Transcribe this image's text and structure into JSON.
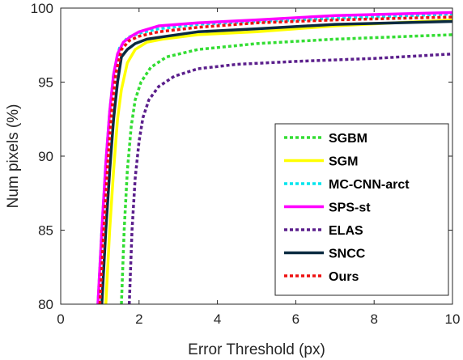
{
  "chart_data": {
    "type": "line",
    "title": "",
    "xlabel": "Error Threshold (px)",
    "ylabel": "Num pixels (%)",
    "xlim": [
      0,
      10
    ],
    "ylim": [
      80,
      100
    ],
    "xticks": [
      "0",
      "2",
      "4",
      "6",
      "8",
      "10"
    ],
    "yticks": [
      "80",
      "85",
      "90",
      "95",
      "100"
    ],
    "grid": false,
    "legend_position": "bottom-right",
    "series": [
      {
        "name": "SGBM",
        "color": "#33dd33",
        "style": "dotted",
        "x": [
          1.55,
          1.62,
          1.7,
          1.8,
          1.9,
          2.05,
          2.3,
          2.7,
          3.5,
          5,
          7,
          10
        ],
        "y": [
          80,
          85,
          89,
          92,
          93.8,
          95,
          96,
          96.7,
          97.2,
          97.6,
          97.9,
          98.2
        ]
      },
      {
        "name": "SGM",
        "color": "#ffff00",
        "style": "solid",
        "x": [
          1.15,
          1.25,
          1.35,
          1.45,
          1.55,
          1.7,
          1.9,
          2.2,
          2.6,
          3.5,
          5,
          7,
          10
        ],
        "y": [
          80,
          85,
          89,
          92.5,
          94.5,
          96.3,
          97.2,
          97.7,
          97.9,
          98.2,
          98.4,
          98.8,
          99.2
        ]
      },
      {
        "name": "MC-CNN-arct",
        "color": "#00e5ee",
        "style": "dotted",
        "x": [
          0.95,
          1.05,
          1.15,
          1.25,
          1.35,
          1.5,
          1.7,
          2.0,
          2.5,
          3.5,
          5,
          7,
          10
        ],
        "y": [
          80,
          85,
          89.5,
          93,
          95.5,
          97.3,
          98.0,
          98.3,
          98.6,
          98.9,
          99.1,
          99.3,
          99.6
        ]
      },
      {
        "name": "SPS-st",
        "color": "#ff00ff",
        "style": "solid",
        "x": [
          0.95,
          1.05,
          1.15,
          1.25,
          1.35,
          1.45,
          1.6,
          1.8,
          2.0,
          2.5,
          3.5,
          5,
          7,
          10
        ],
        "y": [
          80,
          85,
          89.5,
          93,
          95.5,
          96.9,
          97.7,
          98.1,
          98.4,
          98.8,
          99.0,
          99.2,
          99.5,
          99.7
        ]
      },
      {
        "name": "ELAS",
        "color": "#5b1f8c",
        "style": "dotted",
        "x": [
          1.75,
          1.82,
          1.9,
          2.0,
          2.1,
          2.25,
          2.5,
          2.9,
          3.5,
          4.5,
          6,
          8,
          10
        ],
        "y": [
          80,
          85,
          88.5,
          91,
          92.6,
          93.8,
          94.7,
          95.4,
          95.9,
          96.2,
          96.4,
          96.6,
          96.9
        ]
      },
      {
        "name": "SNCC",
        "color": "#0a2a40",
        "style": "solid",
        "x": [
          1.05,
          1.15,
          1.25,
          1.35,
          1.45,
          1.55,
          1.7,
          1.9,
          2.2,
          2.7,
          3.5,
          5,
          7,
          10
        ],
        "y": [
          80,
          85,
          89,
          92.5,
          95,
          96.7,
          97.2,
          97.6,
          97.9,
          98.1,
          98.4,
          98.6,
          98.9,
          99.1
        ]
      },
      {
        "name": "Ours",
        "color": "#ee1111",
        "style": "dotted",
        "x": [
          1.0,
          1.1,
          1.2,
          1.3,
          1.4,
          1.55,
          1.75,
          2.0,
          2.5,
          3.5,
          5,
          7,
          10
        ],
        "y": [
          80,
          85,
          89.5,
          93,
          95.5,
          97.2,
          97.8,
          98.1,
          98.4,
          98.7,
          99.0,
          99.2,
          99.4
        ]
      }
    ]
  }
}
